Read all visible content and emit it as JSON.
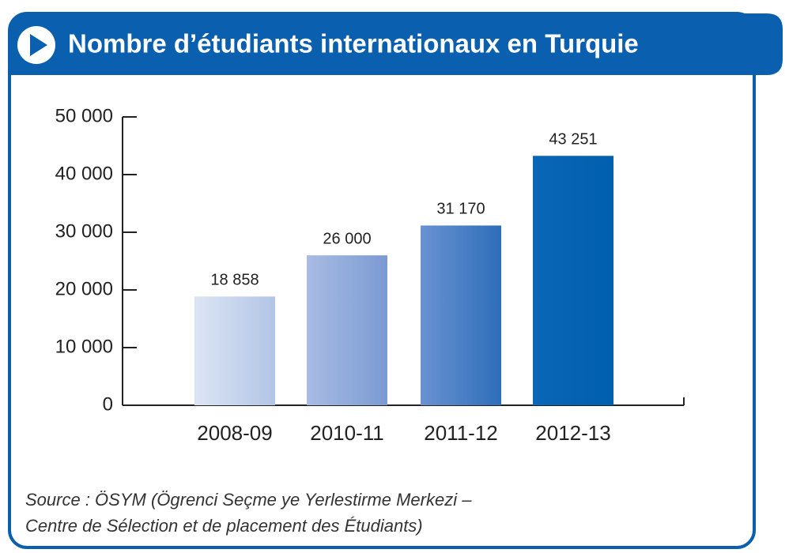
{
  "chart_data": {
    "type": "bar",
    "title": "Nombre d’étudiants internationaux en Turquie",
    "categories": [
      "2008-09",
      "2010-11",
      "2011-12",
      "2012-13"
    ],
    "values": [
      18858,
      26000,
      31170,
      43251
    ],
    "value_labels": [
      "18 858",
      "26 000",
      "31 170",
      "43 251"
    ],
    "colors": [
      [
        "#dce5f4",
        "#b2c5e6"
      ],
      [
        "#a8bce3",
        "#7b9ad2"
      ],
      [
        "#6992d0",
        "#2e6eba"
      ],
      [
        "#0a66b6",
        "#005fae"
      ]
    ],
    "ylim": [
      0,
      50000
    ],
    "yticks": [
      0,
      {
        "value": 10000,
        "label": "10 000"
      },
      {
        "value": 20000,
        "label": "20 000"
      },
      {
        "value": 30000,
        "label": "30 000"
      },
      {
        "value": 40000,
        "label": "40 000"
      },
      {
        "value": 50000,
        "label": "50 000"
      }
    ],
    "source": [
      "Source : ÖSYM (Ögrenci Seçme ye Yerlestirme Merkezi –",
      "Centre de Sélection et de placement des Étudiants)"
    ]
  }
}
